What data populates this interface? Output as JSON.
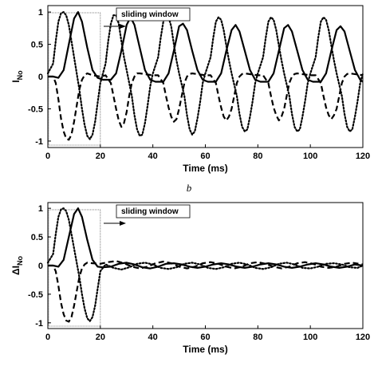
{
  "caption": "b",
  "chart_data": [
    {
      "type": "line",
      "xlabel": "Time (ms)",
      "ylabel_main": "I",
      "ylabel_sub": "No",
      "xlim": [
        0,
        120
      ],
      "ylim": [
        -1.1,
        1.1
      ],
      "xticks": [
        0,
        20,
        40,
        60,
        80,
        100,
        120
      ],
      "yticks": [
        -1,
        -0.5,
        0,
        0.5,
        1
      ],
      "window_label": "sliding window",
      "window_x": [
        0,
        20
      ],
      "series": [
        {
          "style": "solid",
          "x": [
            0,
            2,
            4,
            6,
            8,
            10,
            11.5,
            13,
            15,
            17,
            19,
            21,
            24,
            26,
            28,
            30,
            31.5,
            33,
            35,
            37,
            39,
            41,
            44,
            46,
            48,
            50,
            51.5,
            53,
            55,
            57,
            59,
            61,
            64,
            66,
            68,
            70,
            71.5,
            73,
            75,
            77,
            79,
            81,
            84,
            86,
            88,
            90,
            91.5,
            93,
            95,
            97,
            99,
            101,
            104,
            106,
            108,
            110,
            111.5,
            113,
            115,
            117,
            119,
            120
          ],
          "y": [
            0,
            0,
            -0.02,
            0.1,
            0.5,
            0.9,
            1.0,
            0.85,
            0.45,
            0.1,
            -0.02,
            -0.05,
            -0.05,
            0.05,
            0.4,
            0.8,
            0.92,
            0.8,
            0.45,
            0.1,
            -0.05,
            -0.08,
            -0.08,
            0.05,
            0.4,
            0.78,
            0.82,
            0.72,
            0.4,
            0.1,
            -0.05,
            -0.08,
            -0.08,
            0.05,
            0.4,
            0.72,
            0.8,
            0.7,
            0.4,
            0.1,
            -0.05,
            -0.08,
            -0.08,
            0.05,
            0.4,
            0.75,
            0.8,
            0.7,
            0.4,
            0.1,
            -0.05,
            -0.08,
            -0.08,
            0.05,
            0.4,
            0.72,
            0.78,
            0.7,
            0.4,
            0.1,
            -0.05,
            -0.08
          ]
        },
        {
          "style": "dashed",
          "x": [
            0,
            2,
            3,
            4,
            5,
            6,
            7,
            8,
            9,
            10,
            11,
            12,
            13,
            14,
            15,
            17,
            20,
            22,
            24,
            25,
            26,
            27,
            28,
            29,
            30,
            31,
            32,
            33,
            34,
            35,
            40,
            42,
            44,
            45,
            46,
            47,
            48,
            49,
            50,
            51,
            52,
            53,
            54,
            55,
            60,
            62,
            64,
            65,
            66,
            67,
            68,
            69,
            70,
            71,
            72,
            73,
            74,
            75,
            80,
            82,
            84,
            85,
            86,
            87,
            88,
            89,
            90,
            91,
            92,
            93,
            94,
            95,
            100,
            102,
            104,
            105,
            106,
            107,
            108,
            109,
            110,
            111,
            112,
            113,
            114,
            115,
            120
          ],
          "y": [
            0,
            0,
            -0.1,
            -0.35,
            -0.65,
            -0.85,
            -0.96,
            -0.98,
            -0.9,
            -0.7,
            -0.45,
            -0.2,
            -0.05,
            0.02,
            0.05,
            0.02,
            0,
            0.02,
            -0.1,
            -0.3,
            -0.5,
            -0.68,
            -0.78,
            -0.72,
            -0.55,
            -0.3,
            -0.1,
            0,
            0.05,
            0.05,
            0.02,
            0.02,
            -0.1,
            -0.3,
            -0.48,
            -0.62,
            -0.7,
            -0.66,
            -0.5,
            -0.3,
            -0.1,
            0,
            0.04,
            0.05,
            0.02,
            0.02,
            -0.1,
            -0.3,
            -0.48,
            -0.62,
            -0.68,
            -0.62,
            -0.5,
            -0.3,
            -0.1,
            0,
            0.04,
            0.05,
            0.02,
            0.02,
            -0.1,
            -0.3,
            -0.48,
            -0.6,
            -0.68,
            -0.62,
            -0.5,
            -0.3,
            -0.1,
            0,
            0.04,
            0.05,
            0.02,
            0.02,
            -0.1,
            -0.3,
            -0.48,
            -0.6,
            -0.66,
            -0.6,
            -0.5,
            -0.3,
            -0.1,
            0,
            0.04,
            0.05,
            0.02
          ]
        },
        {
          "style": "dotted",
          "x": [
            0,
            2,
            3,
            4,
            5,
            6,
            7,
            8,
            9,
            10,
            12,
            13,
            14,
            15,
            16,
            17,
            18,
            19,
            20,
            22,
            23,
            24,
            25,
            26,
            27,
            28,
            29,
            30,
            32,
            33,
            34,
            35,
            36,
            37,
            38,
            39,
            40,
            42,
            43,
            44,
            45,
            46,
            47,
            48,
            49,
            50,
            52,
            53,
            54,
            55,
            56,
            57,
            58,
            59,
            60,
            62,
            63,
            64,
            65,
            66,
            67,
            68,
            69,
            70,
            72,
            73,
            74,
            75,
            76,
            77,
            78,
            79,
            80,
            82,
            83,
            84,
            85,
            86,
            87,
            88,
            89,
            90,
            92,
            93,
            94,
            95,
            96,
            97,
            98,
            99,
            100,
            102,
            103,
            104,
            105,
            106,
            107,
            108,
            109,
            110,
            112,
            113,
            114,
            115,
            116,
            117,
            118,
            119,
            120
          ],
          "y": [
            0.05,
            0.2,
            0.55,
            0.85,
            0.98,
            1.0,
            0.95,
            0.8,
            0.55,
            0.3,
            -0.2,
            -0.5,
            -0.75,
            -0.92,
            -0.97,
            -0.9,
            -0.7,
            -0.4,
            -0.1,
            0.2,
            0.55,
            0.82,
            0.95,
            0.95,
            0.82,
            0.55,
            0.3,
            0.1,
            -0.3,
            -0.6,
            -0.82,
            -0.92,
            -0.9,
            -0.72,
            -0.45,
            -0.15,
            0.05,
            0.3,
            0.6,
            0.85,
            0.95,
            0.92,
            0.78,
            0.5,
            0.25,
            0.05,
            -0.3,
            -0.6,
            -0.82,
            -0.9,
            -0.85,
            -0.65,
            -0.4,
            -0.1,
            0.05,
            0.3,
            0.6,
            0.85,
            0.92,
            0.88,
            0.72,
            0.48,
            0.25,
            0.05,
            -0.3,
            -0.58,
            -0.78,
            -0.85,
            -0.82,
            -0.62,
            -0.38,
            -0.1,
            0.05,
            0.3,
            0.6,
            0.85,
            0.92,
            0.88,
            0.72,
            0.48,
            0.25,
            0.05,
            -0.3,
            -0.58,
            -0.78,
            -0.85,
            -0.82,
            -0.62,
            -0.38,
            -0.1,
            0.05,
            0.3,
            0.6,
            0.85,
            0.92,
            0.88,
            0.72,
            0.48,
            0.25,
            0.05,
            -0.3,
            -0.58,
            -0.78,
            -0.85,
            -0.82,
            -0.62,
            -0.38,
            -0.1,
            0.05
          ]
        }
      ]
    },
    {
      "type": "line",
      "xlabel": "Time (ms)",
      "ylabel_main": "ΔI",
      "ylabel_sub": "No",
      "xlim": [
        0,
        120
      ],
      "ylim": [
        -1.1,
        1.1
      ],
      "xticks": [
        0,
        20,
        40,
        60,
        80,
        100,
        120
      ],
      "yticks": [
        -1,
        -0.5,
        0,
        0.5,
        1
      ],
      "window_label": "sliding window",
      "window_x": [
        0,
        20
      ],
      "series": [
        {
          "style": "solid",
          "x": [
            0,
            2,
            4,
            6,
            8,
            10,
            11.5,
            13,
            15,
            17,
            19,
            21,
            24,
            27,
            30,
            33,
            36,
            39,
            42,
            45,
            48,
            51,
            54,
            57,
            60,
            63,
            66,
            69,
            72,
            75,
            78,
            81,
            84,
            87,
            90,
            93,
            96,
            99,
            102,
            105,
            108,
            111,
            114,
            117,
            120
          ],
          "y": [
            0,
            0,
            -0.02,
            0.1,
            0.5,
            0.9,
            1.0,
            0.85,
            0.45,
            0.1,
            -0.02,
            -0.03,
            -0.02,
            0.03,
            0.05,
            0.02,
            -0.03,
            -0.05,
            -0.02,
            0.03,
            0.04,
            0.02,
            -0.02,
            -0.04,
            -0.02,
            0.02,
            0.04,
            0.02,
            -0.02,
            -0.04,
            -0.02,
            0.02,
            0.04,
            0.02,
            -0.02,
            -0.04,
            -0.02,
            0.02,
            0.04,
            0.02,
            -0.02,
            -0.04,
            -0.02,
            0.02,
            0
          ]
        },
        {
          "style": "dashed",
          "x": [
            0,
            2,
            3,
            4,
            5,
            6,
            7,
            8,
            9,
            10,
            11,
            12,
            13,
            14,
            15,
            17,
            20,
            23,
            26,
            29,
            32,
            35,
            38,
            41,
            44,
            47,
            50,
            53,
            56,
            59,
            62,
            65,
            68,
            71,
            74,
            77,
            80,
            83,
            86,
            89,
            92,
            95,
            98,
            101,
            104,
            107,
            110,
            113,
            116,
            120
          ],
          "y": [
            0,
            0,
            -0.1,
            -0.35,
            -0.65,
            -0.85,
            -0.96,
            -0.98,
            -0.9,
            -0.7,
            -0.45,
            -0.2,
            -0.05,
            0.02,
            0.05,
            0.04,
            0.03,
            0.06,
            0.08,
            0.04,
            -0.02,
            -0.05,
            -0.02,
            0.04,
            0.07,
            0.04,
            -0.02,
            -0.05,
            -0.02,
            0.04,
            0.06,
            0.03,
            -0.02,
            -0.05,
            -0.02,
            0.04,
            0.06,
            0.03,
            -0.02,
            -0.05,
            -0.02,
            0.04,
            0.06,
            0.03,
            -0.02,
            -0.04,
            -0.02,
            0.03,
            0.05,
            0.02
          ]
        },
        {
          "style": "dotted",
          "x": [
            0,
            2,
            3,
            4,
            5,
            6,
            7,
            8,
            9,
            10,
            12,
            13,
            14,
            15,
            16,
            17,
            18,
            19,
            20,
            22,
            25,
            28,
            31,
            34,
            37,
            40,
            43,
            46,
            49,
            52,
            55,
            58,
            61,
            64,
            67,
            70,
            73,
            76,
            79,
            82,
            85,
            88,
            91,
            94,
            97,
            100,
            103,
            106,
            109,
            112,
            115,
            118,
            120
          ],
          "y": [
            0.05,
            0.2,
            0.55,
            0.85,
            0.98,
            1.0,
            0.95,
            0.8,
            0.55,
            0.3,
            -0.2,
            -0.5,
            -0.75,
            -0.92,
            -0.97,
            -0.9,
            -0.7,
            -0.4,
            -0.1,
            0.02,
            -0.04,
            -0.07,
            -0.03,
            0.03,
            0.05,
            0.02,
            -0.04,
            -0.06,
            -0.03,
            0.03,
            0.05,
            0.02,
            -0.04,
            -0.06,
            -0.03,
            0.03,
            0.05,
            0.02,
            -0.04,
            -0.06,
            -0.03,
            0.03,
            0.05,
            0.02,
            -0.04,
            -0.05,
            -0.02,
            0.03,
            0.04,
            0.02,
            -0.03,
            -0.04,
            0
          ]
        }
      ]
    }
  ]
}
